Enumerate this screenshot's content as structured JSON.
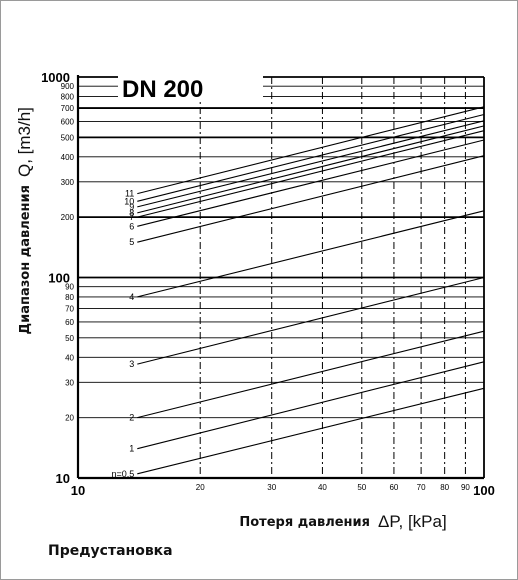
{
  "caption": "Предустановка",
  "chart_data": {
    "type": "line",
    "title": "DN 200",
    "x_scale": "log",
    "y_scale": "log",
    "xlim": [
      10,
      100
    ],
    "ylim": [
      10,
      1000
    ],
    "xlabel_text": "Потеря давления",
    "xlabel_symbol": "ΔP, [kPa]",
    "ylabel_text": "Диапазон давления",
    "ylabel_symbol": "Q, [m3/h]",
    "x_ticks": [
      {
        "value": 10,
        "label": "10",
        "major": true
      },
      {
        "value": 20,
        "label": "20",
        "major": false
      },
      {
        "value": 30,
        "label": "30",
        "major": false
      },
      {
        "value": 40,
        "label": "40",
        "major": false
      },
      {
        "value": 50,
        "label": "50",
        "major": false
      },
      {
        "value": 60,
        "label": "60",
        "major": false
      },
      {
        "value": 70,
        "label": "70",
        "major": false
      },
      {
        "value": 80,
        "label": "80",
        "major": false
      },
      {
        "value": 90,
        "label": "90",
        "major": false
      },
      {
        "value": 100,
        "label": "100",
        "major": true
      }
    ],
    "y_ticks": [
      {
        "value": 10,
        "label": "10",
        "major": true
      },
      {
        "value": 20,
        "label": "20",
        "major": false
      },
      {
        "value": 30,
        "label": "30",
        "major": false
      },
      {
        "value": 40,
        "label": "40",
        "major": false
      },
      {
        "value": 50,
        "label": "50",
        "major": false
      },
      {
        "value": 60,
        "label": "60",
        "major": false
      },
      {
        "value": 70,
        "label": "70",
        "major": false
      },
      {
        "value": 80,
        "label": "80",
        "major": false
      },
      {
        "value": 90,
        "label": "90",
        "major": false
      },
      {
        "value": 100,
        "label": "100",
        "major": true
      },
      {
        "value": 200,
        "label": "200",
        "major": false
      },
      {
        "value": 300,
        "label": "300",
        "major": false
      },
      {
        "value": 400,
        "label": "400",
        "major": false
      },
      {
        "value": 500,
        "label": "500",
        "major": false
      },
      {
        "value": 600,
        "label": "600",
        "major": false
      },
      {
        "value": 700,
        "label": "700",
        "major": false
      },
      {
        "value": 800,
        "label": "800",
        "major": false
      },
      {
        "value": 900,
        "label": "900",
        "major": false
      },
      {
        "value": 1000,
        "label": "1000",
        "major": true
      }
    ],
    "grid": true,
    "series": [
      {
        "name": "n=0,5",
        "x": [
          14,
          100
        ],
        "y": [
          10.5,
          28
        ]
      },
      {
        "name": "1",
        "x": [
          14,
          100
        ],
        "y": [
          14,
          38
        ]
      },
      {
        "name": "2",
        "x": [
          14,
          100
        ],
        "y": [
          20,
          54
        ]
      },
      {
        "name": "3",
        "x": [
          14,
          100
        ],
        "y": [
          37,
          100
        ]
      },
      {
        "name": "4",
        "x": [
          14,
          100
        ],
        "y": [
          80,
          215
        ]
      },
      {
        "name": "5",
        "x": [
          14,
          100
        ],
        "y": [
          150,
          405
        ]
      },
      {
        "name": "6",
        "x": [
          14,
          100
        ],
        "y": [
          180,
          485
        ]
      },
      {
        "name": "7",
        "x": [
          14,
          100
        ],
        "y": [
          200,
          540
        ]
      },
      {
        "name": "8",
        "x": [
          14,
          100
        ],
        "y": [
          210,
          570
        ]
      },
      {
        "name": "9",
        "x": [
          14,
          100
        ],
        "y": [
          225,
          605
        ]
      },
      {
        "name": "10",
        "x": [
          14,
          100
        ],
        "y": [
          240,
          650
        ]
      },
      {
        "name": "11",
        "x": [
          14,
          100
        ],
        "y": [
          262,
          710
        ]
      }
    ]
  }
}
